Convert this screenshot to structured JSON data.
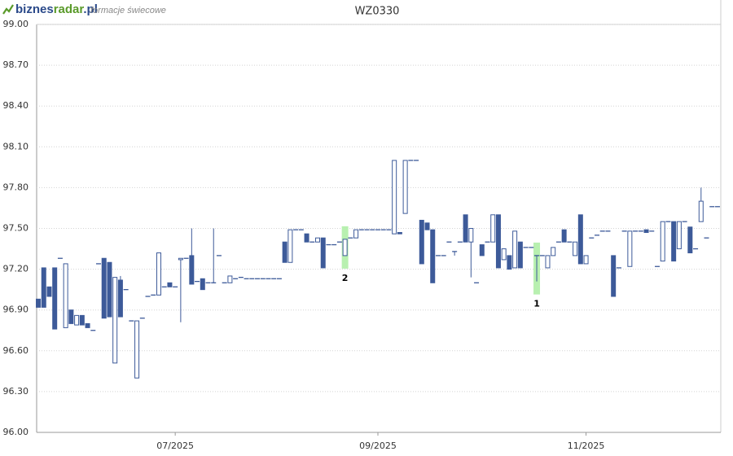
{
  "chart_data": {
    "type": "candlestick",
    "title": "WZ0330",
    "logo": [
      "biznes",
      "radar",
      ".pl"
    ],
    "subtitle": "formacje świecowe",
    "up_color": "#ffffff",
    "down_color": "#3d5a99",
    "highlight_color": "#b8f0b0",
    "grid": true,
    "ylim": [
      96.0,
      99.0
    ],
    "yticks": [
      {
        "value": 96.0,
        "label": "96.00"
      },
      {
        "value": 96.3,
        "label": "96.30"
      },
      {
        "value": 96.6,
        "label": "96.60"
      },
      {
        "value": 96.9,
        "label": "96.90"
      },
      {
        "value": 97.2,
        "label": "97.20"
      },
      {
        "value": 97.5,
        "label": "97.50"
      },
      {
        "value": 97.8,
        "label": "97.80"
      },
      {
        "value": 98.1,
        "label": "98.10"
      },
      {
        "value": 98.4,
        "label": "98.40"
      },
      {
        "value": 98.7,
        "label": "98.70"
      },
      {
        "value": 99.0,
        "label": "99.00"
      }
    ],
    "xlim": [
      -0.3,
      124.6
    ],
    "xticks": [
      {
        "value": 25,
        "label": "07/2025"
      },
      {
        "value": 62,
        "label": "09/2025"
      },
      {
        "value": 100,
        "label": "11/2025"
      }
    ],
    "annotations": [
      {
        "text": "2",
        "x": 56
      },
      {
        "text": "1",
        "x": 91
      }
    ],
    "x": [
      0,
      1,
      2,
      3,
      4,
      5,
      6,
      7,
      8,
      9,
      10,
      11,
      12,
      13,
      14,
      15,
      16,
      17,
      18,
      19,
      20,
      21,
      22,
      23,
      24,
      25,
      26,
      27,
      28,
      29,
      30,
      31,
      32,
      33,
      34,
      35,
      36,
      37,
      38,
      39,
      40,
      41,
      42,
      43,
      44,
      45,
      46,
      47,
      48,
      49,
      50,
      51,
      52,
      53,
      54,
      55,
      56,
      57,
      58,
      59,
      60,
      61,
      62,
      63,
      64,
      65,
      66,
      67,
      68,
      69,
      70,
      71,
      72,
      73,
      74,
      75,
      76,
      77,
      78,
      79,
      80,
      81,
      82,
      83,
      84,
      85,
      86,
      87,
      88,
      89,
      90,
      91,
      92,
      93,
      94,
      95,
      96,
      97,
      98,
      99,
      100,
      101,
      102,
      103,
      104,
      105,
      106,
      107,
      108,
      109,
      110,
      111,
      112,
      113,
      114,
      115,
      116,
      117,
      118,
      119,
      120,
      121,
      122,
      123,
      124
    ],
    "ohlc": [
      [
        96.98,
        96.98,
        96.92,
        96.92
      ],
      [
        97.21,
        97.21,
        96.92,
        96.92
      ],
      [
        97.07,
        97.07,
        97.0,
        97.0
      ],
      [
        97.21,
        97.21,
        96.76,
        96.76
      ],
      [
        97.28,
        97.28,
        97.28,
        97.28
      ],
      [
        96.77,
        97.24,
        96.77,
        97.24
      ],
      [
        96.9,
        96.9,
        96.8,
        96.8
      ],
      [
        96.79,
        96.86,
        96.79,
        96.86
      ],
      [
        96.86,
        96.86,
        96.79,
        96.79
      ],
      [
        96.8,
        96.8,
        96.77,
        96.77
      ],
      [
        96.75,
        96.75,
        96.75,
        96.75
      ],
      [
        97.24,
        97.24,
        97.24,
        97.24
      ],
      [
        97.28,
        97.28,
        96.84,
        96.84
      ],
      [
        97.25,
        97.25,
        96.85,
        96.85
      ],
      [
        96.51,
        97.14,
        96.51,
        97.14
      ],
      [
        97.12,
        97.15,
        96.85,
        96.85
      ],
      [
        97.05,
        97.05,
        97.05,
        97.05
      ],
      [
        96.82,
        96.82,
        96.82,
        96.82
      ],
      [
        96.4,
        96.82,
        96.4,
        96.82
      ],
      [
        96.84,
        96.84,
        96.84,
        96.84
      ],
      [
        97.0,
        97.0,
        97.0,
        97.0
      ],
      [
        97.01,
        97.01,
        97.01,
        97.01
      ],
      [
        97.01,
        97.32,
        97.01,
        97.32
      ],
      [
        97.07,
        97.07,
        97.07,
        97.07
      ],
      [
        97.1,
        97.1,
        97.07,
        97.07
      ],
      [
        97.07,
        97.07,
        97.07,
        97.07
      ],
      [
        97.27,
        97.28,
        96.81,
        97.28
      ],
      [
        97.28,
        97.28,
        97.28,
        97.28
      ],
      [
        97.3,
        97.5,
        97.09,
        97.09
      ],
      [
        97.11,
        97.11,
        97.11,
        97.11
      ],
      [
        97.13,
        97.13,
        97.05,
        97.05
      ],
      [
        97.1,
        97.1,
        97.1,
        97.1
      ],
      [
        97.1,
        97.5,
        97.1,
        97.1
      ],
      [
        97.3,
        97.3,
        97.3,
        97.3
      ],
      [
        97.1,
        97.1,
        97.1,
        97.1
      ],
      [
        97.1,
        97.15,
        97.1,
        97.15
      ],
      [
        97.13,
        97.13,
        97.13,
        97.13
      ],
      [
        97.14,
        97.14,
        97.14,
        97.14
      ],
      [
        97.13,
        97.13,
        97.13,
        97.13
      ],
      [
        97.13,
        97.13,
        97.13,
        97.13
      ],
      [
        97.13,
        97.13,
        97.13,
        97.13
      ],
      [
        97.13,
        97.13,
        97.13,
        97.13
      ],
      [
        97.13,
        97.13,
        97.13,
        97.13
      ],
      [
        97.13,
        97.13,
        97.13,
        97.13
      ],
      [
        97.13,
        97.13,
        97.13,
        97.13
      ],
      [
        97.4,
        97.4,
        97.25,
        97.25
      ],
      [
        97.25,
        97.49,
        97.25,
        97.49
      ],
      [
        97.49,
        97.49,
        97.49,
        97.49
      ],
      [
        97.49,
        97.49,
        97.49,
        97.49
      ],
      [
        97.46,
        97.46,
        97.4,
        97.4
      ],
      [
        97.4,
        97.4,
        97.4,
        97.4
      ],
      [
        97.4,
        97.43,
        97.4,
        97.43
      ],
      [
        97.43,
        97.43,
        97.21,
        97.21
      ],
      [
        97.38,
        97.38,
        97.38,
        97.38
      ],
      [
        97.38,
        97.38,
        97.38,
        97.38
      ],
      [
        97.4,
        97.4,
        97.4,
        97.4
      ],
      [
        97.3,
        97.42,
        97.3,
        97.42
      ],
      [
        97.43,
        97.43,
        97.43,
        97.43
      ],
      [
        97.43,
        97.49,
        97.43,
        97.49
      ],
      [
        97.49,
        97.49,
        97.49,
        97.49
      ],
      [
        97.49,
        97.49,
        97.49,
        97.49
      ],
      [
        97.49,
        97.49,
        97.49,
        97.49
      ],
      [
        97.49,
        97.49,
        97.49,
        97.49
      ],
      [
        97.49,
        97.49,
        97.49,
        97.49
      ],
      [
        97.49,
        97.49,
        97.49,
        97.49
      ],
      [
        97.46,
        98.0,
        97.46,
        98.0
      ],
      [
        97.47,
        97.47,
        97.46,
        97.46
      ],
      [
        97.61,
        98.0,
        97.61,
        98.0
      ],
      [
        98.0,
        98.0,
        98.0,
        98.0
      ],
      [
        98.0,
        98.0,
        98.0,
        98.0
      ],
      [
        97.56,
        97.56,
        97.24,
        97.24
      ],
      [
        97.54,
        97.54,
        97.49,
        97.49
      ],
      [
        97.49,
        97.49,
        97.1,
        97.1
      ],
      [
        97.3,
        97.3,
        97.3,
        97.3
      ],
      [
        97.3,
        97.3,
        97.3,
        97.3
      ],
      [
        97.4,
        97.4,
        97.4,
        97.4
      ],
      [
        97.33,
        97.33,
        97.3,
        97.33
      ],
      [
        97.4,
        97.4,
        97.4,
        97.4
      ],
      [
        97.6,
        97.6,
        97.4,
        97.4
      ],
      [
        97.4,
        97.5,
        97.14,
        97.5
      ],
      [
        97.1,
        97.1,
        97.1,
        97.1
      ],
      [
        97.38,
        97.38,
        97.3,
        97.3
      ],
      [
        97.4,
        97.4,
        97.4,
        97.4
      ],
      [
        97.4,
        97.6,
        97.4,
        97.6
      ],
      [
        97.6,
        97.6,
        97.21,
        97.21
      ],
      [
        97.27,
        97.35,
        97.27,
        97.35
      ],
      [
        97.3,
        97.3,
        97.2,
        97.2
      ],
      [
        97.21,
        97.48,
        97.21,
        97.48
      ],
      [
        97.4,
        97.4,
        97.21,
        97.21
      ],
      [
        97.36,
        97.36,
        97.36,
        97.36
      ],
      [
        97.36,
        97.36,
        97.36,
        97.36
      ],
      [
        97.3,
        97.3,
        97.11,
        97.3
      ],
      [
        97.3,
        97.3,
        97.3,
        97.3
      ],
      [
        97.21,
        97.3,
        97.21,
        97.3
      ],
      [
        97.3,
        97.36,
        97.3,
        97.36
      ],
      [
        97.4,
        97.4,
        97.4,
        97.4
      ],
      [
        97.49,
        97.49,
        97.4,
        97.4
      ],
      [
        97.4,
        97.4,
        97.4,
        97.4
      ],
      [
        97.3,
        97.4,
        97.3,
        97.4
      ],
      [
        97.6,
        97.6,
        97.24,
        97.24
      ],
      [
        97.24,
        97.3,
        97.24,
        97.3
      ],
      [
        97.43,
        97.43,
        97.43,
        97.43
      ],
      [
        97.45,
        97.45,
        97.45,
        97.45
      ],
      [
        97.48,
        97.48,
        97.48,
        97.48
      ],
      [
        97.48,
        97.48,
        97.48,
        97.48
      ],
      [
        97.3,
        97.3,
        97.0,
        97.0
      ],
      [
        97.21,
        97.21,
        97.21,
        97.21
      ],
      [
        97.48,
        97.48,
        97.48,
        97.48
      ],
      [
        97.22,
        97.48,
        97.22,
        97.48
      ],
      [
        97.48,
        97.48,
        97.48,
        97.48
      ],
      [
        97.48,
        97.48,
        97.48,
        97.48
      ],
      [
        97.49,
        97.49,
        97.47,
        97.47
      ],
      [
        97.48,
        97.48,
        97.48,
        97.48
      ],
      [
        97.22,
        97.22,
        97.22,
        97.22
      ],
      [
        97.26,
        97.55,
        97.26,
        97.55
      ],
      [
        97.55,
        97.55,
        97.55,
        97.55
      ],
      [
        97.55,
        97.55,
        97.26,
        97.26
      ],
      [
        97.35,
        97.55,
        97.35,
        97.55
      ],
      [
        97.55,
        97.55,
        97.55,
        97.55
      ],
      [
        97.51,
        97.51,
        97.32,
        97.32
      ],
      [
        97.35,
        97.35,
        97.35,
        97.35
      ],
      [
        97.55,
        97.8,
        97.55,
        97.7
      ],
      [
        97.43,
        97.43,
        97.43,
        97.43
      ],
      [
        97.66,
        97.66,
        97.66,
        97.66
      ],
      [
        97.66,
        97.66,
        97.66,
        97.66
      ]
    ]
  }
}
